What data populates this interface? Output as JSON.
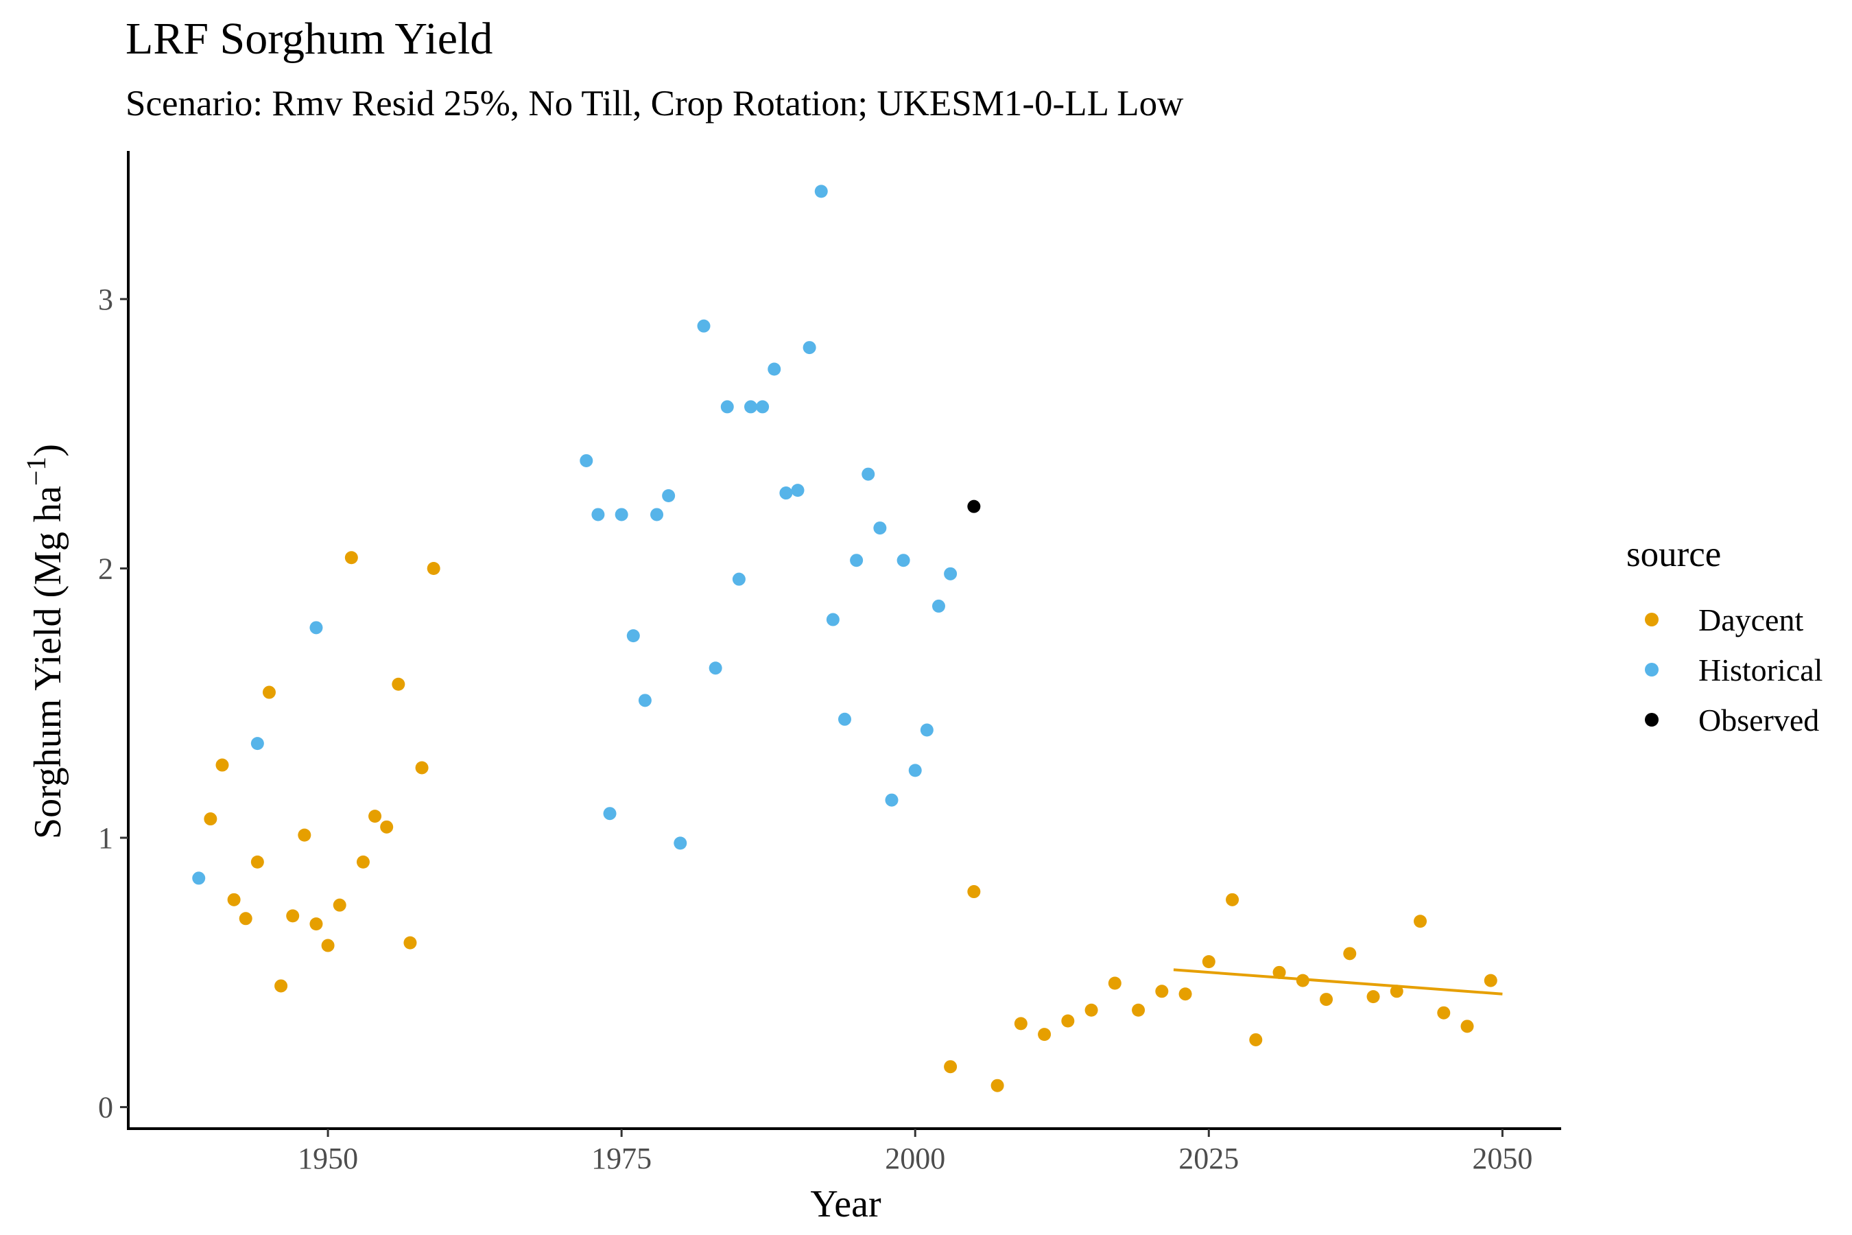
{
  "chart_data": {
    "type": "scatter",
    "title": "LRF Sorghum Yield",
    "subtitle": "Scenario: Rmv Resid 25%, No Till, Crop Rotation; UKESM1-0-LL Low",
    "xlabel": "Year",
    "ylabel": "Sorghum Yield (Mg ha",
    "ylabel_superscript": "−1",
    "ylabel_close": ")",
    "xlim": [
      1933,
      2055
    ],
    "ylim": [
      -0.08,
      3.55
    ],
    "x_ticks": [
      1950,
      1975,
      2000,
      2025,
      2050
    ],
    "x_tick_labels": [
      "1950",
      "1975",
      "2000",
      "2025",
      "2050"
    ],
    "y_ticks": [
      0,
      1,
      2,
      3
    ],
    "y_tick_labels": [
      "0",
      "1",
      "2",
      "3"
    ],
    "grid": false,
    "legend": {
      "title": "source",
      "placement": "right",
      "entries": [
        {
          "label": "Daycent",
          "color": "#E69F00"
        },
        {
          "label": "Historical",
          "color": "#56B4E9"
        },
        {
          "label": "Observed",
          "color": "#000000"
        }
      ]
    },
    "series": [
      {
        "name": "Daycent",
        "color": "#E69F00",
        "points": [
          [
            1940,
            1.07
          ],
          [
            1941,
            1.27
          ],
          [
            1942,
            0.77
          ],
          [
            1943,
            0.7
          ],
          [
            1944,
            0.91
          ],
          [
            1945,
            1.54
          ],
          [
            1946,
            0.45
          ],
          [
            1947,
            0.71
          ],
          [
            1948,
            1.01
          ],
          [
            1949,
            0.68
          ],
          [
            1950,
            0.6
          ],
          [
            1951,
            0.75
          ],
          [
            1952,
            2.04
          ],
          [
            1953,
            0.91
          ],
          [
            1954,
            1.08
          ],
          [
            1955,
            1.04
          ],
          [
            1956,
            1.57
          ],
          [
            1957,
            0.61
          ],
          [
            1958,
            1.26
          ],
          [
            1959,
            2.0
          ],
          [
            2003,
            0.15
          ],
          [
            2005,
            0.8
          ],
          [
            2007,
            0.08
          ],
          [
            2009,
            0.31
          ],
          [
            2011,
            0.27
          ],
          [
            2013,
            0.32
          ],
          [
            2015,
            0.36
          ],
          [
            2017,
            0.46
          ],
          [
            2019,
            0.36
          ],
          [
            2021,
            0.43
          ],
          [
            2023,
            0.42
          ],
          [
            2025,
            0.54
          ],
          [
            2027,
            0.77
          ],
          [
            2029,
            0.25
          ],
          [
            2031,
            0.5
          ],
          [
            2033,
            0.47
          ],
          [
            2035,
            0.4
          ],
          [
            2037,
            0.57
          ],
          [
            2039,
            0.41
          ],
          [
            2041,
            0.43
          ],
          [
            2043,
            0.69
          ],
          [
            2045,
            0.35
          ],
          [
            2047,
            0.3
          ],
          [
            2049,
            0.47
          ]
        ]
      },
      {
        "name": "Historical",
        "color": "#56B4E9",
        "points": [
          [
            1939,
            0.85
          ],
          [
            1944,
            1.35
          ],
          [
            1949,
            1.78
          ],
          [
            1972,
            2.4
          ],
          [
            1973,
            2.2
          ],
          [
            1974,
            1.09
          ],
          [
            1975,
            2.2
          ],
          [
            1976,
            1.75
          ],
          [
            1977,
            1.51
          ],
          [
            1978,
            2.2
          ],
          [
            1979,
            2.27
          ],
          [
            1980,
            0.98
          ],
          [
            1982,
            2.9
          ],
          [
            1983,
            1.63
          ],
          [
            1984,
            2.6
          ],
          [
            1985,
            1.96
          ],
          [
            1986,
            2.6
          ],
          [
            1987,
            2.6
          ],
          [
            1988,
            2.74
          ],
          [
            1989,
            2.28
          ],
          [
            1990,
            2.29
          ],
          [
            1991,
            2.82
          ],
          [
            1992,
            3.4
          ],
          [
            1993,
            1.81
          ],
          [
            1994,
            1.44
          ],
          [
            1995,
            2.03
          ],
          [
            1996,
            2.35
          ],
          [
            1997,
            2.15
          ],
          [
            1998,
            1.14
          ],
          [
            1999,
            2.03
          ],
          [
            2000,
            1.25
          ],
          [
            2001,
            1.4
          ],
          [
            2002,
            1.86
          ],
          [
            2003,
            1.98
          ]
        ]
      },
      {
        "name": "Observed",
        "color": "#000000",
        "points": [
          [
            2005,
            2.23
          ]
        ]
      }
    ],
    "trend_line": {
      "series": "Daycent",
      "color": "#E69F00",
      "x": [
        2022,
        2050
      ],
      "y": [
        0.51,
        0.42
      ]
    }
  }
}
